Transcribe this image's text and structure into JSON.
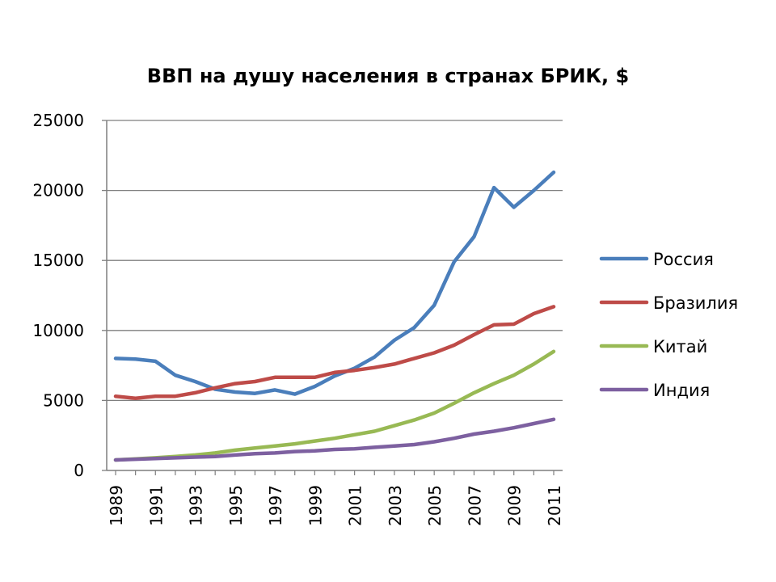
{
  "chart_data": {
    "type": "line",
    "title": "ВВП на душу населения в странах БРИК, $",
    "xlabel": "",
    "ylabel": "",
    "ylim": [
      0,
      25000
    ],
    "yticks": [
      "0",
      "5000",
      "10000",
      "15000",
      "20000",
      "25000"
    ],
    "xticks": [
      "1989",
      "1991",
      "1993",
      "1995",
      "1997",
      "1999",
      "2001",
      "2003",
      "2005",
      "2007",
      "2009",
      "2011"
    ],
    "x": [
      1989,
      1990,
      1991,
      1992,
      1993,
      1994,
      1995,
      1996,
      1997,
      1998,
      1999,
      2000,
      2001,
      2002,
      2003,
      2004,
      2005,
      2006,
      2007,
      2008,
      2009,
      2010,
      2011
    ],
    "grid": "horizontal",
    "legend_position": "right",
    "series": [
      {
        "name": "Россия",
        "color": "#4a7ebb",
        "values": [
          8000,
          7950,
          7800,
          6800,
          6350,
          5800,
          5600,
          5500,
          5750,
          5450,
          6000,
          6750,
          7300,
          8100,
          9300,
          10200,
          11800,
          14900,
          16700,
          20200,
          18800,
          20000,
          21300
        ]
      },
      {
        "name": "Бразилия",
        "color": "#be4b48",
        "values": [
          5300,
          5150,
          5300,
          5300,
          5550,
          5900,
          6200,
          6350,
          6650,
          6650,
          6650,
          7000,
          7150,
          7350,
          7600,
          8000,
          8400,
          8950,
          9700,
          10400,
          10450,
          11200,
          11700
        ]
      },
      {
        "name": "Китай",
        "color": "#98b954",
        "values": [
          750,
          820,
          900,
          1000,
          1100,
          1250,
          1450,
          1600,
          1750,
          1900,
          2100,
          2300,
          2550,
          2800,
          3200,
          3600,
          4100,
          4800,
          5550,
          6200,
          6800,
          7600,
          8500
        ]
      },
      {
        "name": "Индия",
        "color": "#7d60a0",
        "values": [
          750,
          800,
          850,
          900,
          950,
          1000,
          1100,
          1200,
          1250,
          1350,
          1400,
          1500,
          1550,
          1650,
          1750,
          1850,
          2050,
          2300,
          2600,
          2800,
          3050,
          3350,
          3650
        ]
      }
    ]
  }
}
